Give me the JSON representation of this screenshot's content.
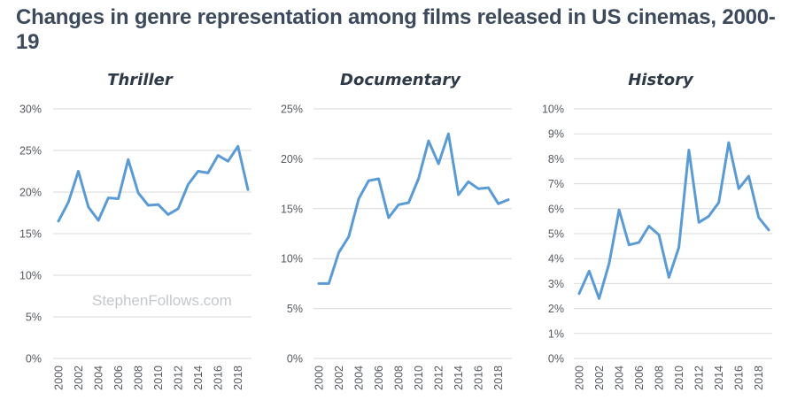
{
  "title": "Changes in genre representation among films released in US cinemas, 2000-19",
  "watermark": "StephenFollows.com",
  "chart_data": [
    {
      "type": "line",
      "title": "Thriller",
      "x": [
        2000,
        2001,
        2002,
        2003,
        2004,
        2005,
        2006,
        2007,
        2008,
        2009,
        2010,
        2011,
        2012,
        2013,
        2014,
        2015,
        2016,
        2017,
        2018,
        2019
      ],
      "x_tick_labels": [
        "2000",
        "2002",
        "2004",
        "2006",
        "2008",
        "2010",
        "2012",
        "2014",
        "2016",
        "2018"
      ],
      "series": [
        {
          "values": [
            16.5,
            18.8,
            22.5,
            18.2,
            16.6,
            19.3,
            19.2,
            23.9,
            19.9,
            18.4,
            18.5,
            17.3,
            18.0,
            20.9,
            22.5,
            22.3,
            24.4,
            23.7,
            25.5,
            20.3
          ]
        }
      ],
      "ylim": [
        0,
        30
      ],
      "y_ticks": [
        "0%",
        "5%",
        "10%",
        "15%",
        "20%",
        "25%",
        "30%"
      ],
      "grid": true
    },
    {
      "type": "line",
      "title": "Documentary",
      "x": [
        2000,
        2001,
        2002,
        2003,
        2004,
        2005,
        2006,
        2007,
        2008,
        2009,
        2010,
        2011,
        2012,
        2013,
        2014,
        2015,
        2016,
        2017,
        2018,
        2019
      ],
      "x_tick_labels": [
        "2000",
        "2002",
        "2004",
        "2006",
        "2008",
        "2010",
        "2012",
        "2014",
        "2016",
        "2018"
      ],
      "series": [
        {
          "values": [
            7.5,
            7.5,
            10.6,
            12.2,
            16.0,
            17.8,
            18.0,
            14.1,
            15.4,
            15.6,
            18.0,
            21.8,
            19.5,
            22.5,
            16.4,
            17.7,
            17.0,
            17.1,
            15.5,
            15.9
          ]
        }
      ],
      "ylim": [
        0,
        25
      ],
      "y_ticks": [
        "0%",
        "5%",
        "10%",
        "15%",
        "20%",
        "25%"
      ],
      "grid": true
    },
    {
      "type": "line",
      "title": "History",
      "x": [
        2000,
        2001,
        2002,
        2003,
        2004,
        2005,
        2006,
        2007,
        2008,
        2009,
        2010,
        2011,
        2012,
        2013,
        2014,
        2015,
        2016,
        2017,
        2018,
        2019
      ],
      "x_tick_labels": [
        "2000",
        "2002",
        "2004",
        "2006",
        "2008",
        "2010",
        "2012",
        "2014",
        "2016",
        "2018"
      ],
      "series": [
        {
          "values": [
            2.6,
            3.5,
            2.4,
            3.8,
            5.95,
            4.55,
            4.65,
            5.3,
            4.95,
            3.25,
            4.45,
            8.35,
            5.45,
            5.7,
            6.25,
            8.65,
            6.8,
            7.3,
            5.65,
            5.15
          ]
        }
      ],
      "ylim": [
        0,
        10
      ],
      "y_ticks": [
        "0%",
        "1%",
        "2%",
        "3%",
        "4%",
        "5%",
        "6%",
        "7%",
        "8%",
        "9%",
        "10%"
      ],
      "grid": true
    }
  ],
  "colors": {
    "line": "#5b9bd5",
    "grid": "#d9d9d9",
    "title": "#3d4a5c"
  }
}
